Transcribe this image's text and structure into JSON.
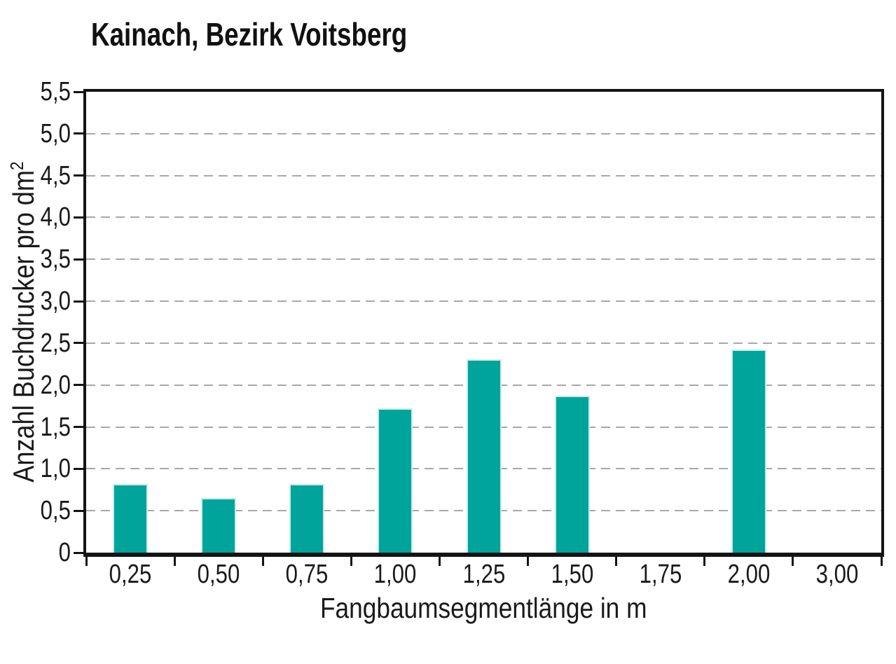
{
  "figure": {
    "title": "Kainach, Bezirk Voitsberg"
  },
  "chart_data": {
    "type": "bar",
    "title": "Kainach, Bezirk Voitsberg",
    "categories": [
      "0,25",
      "0,50",
      "0,75",
      "1,00",
      "1,25",
      "1,50",
      "1,75",
      "2,00",
      "3,00"
    ],
    "values": [
      0.82,
      0.65,
      0.82,
      1.72,
      2.31,
      1.87,
      0,
      2.42,
      0
    ],
    "xlabel": "Fangbaumsegmentlänge in m",
    "ylabel": "Anzahl Buchdrucker pro dm²",
    "ylabel_base": "Anzahl Buchdrucker pro dm",
    "ylabel_sup": "2",
    "ylim": [
      0,
      5.5
    ],
    "ytick_step": 0.5,
    "ytick_labels": [
      "0",
      "0,5",
      "1,0",
      "1,5",
      "2,0",
      "2,5",
      "3,0",
      "3,5",
      "4,0",
      "4,5",
      "5,0",
      "5,5"
    ],
    "grid": "horizontal dashed",
    "legend_position": "none",
    "bar_color": "#00a49b",
    "bar_edge_color": "#c9ece9",
    "grid_color": "#a8a8a8",
    "axis_color": "#141414",
    "text_color": "#1a1a1a",
    "background": "#ffffff"
  }
}
